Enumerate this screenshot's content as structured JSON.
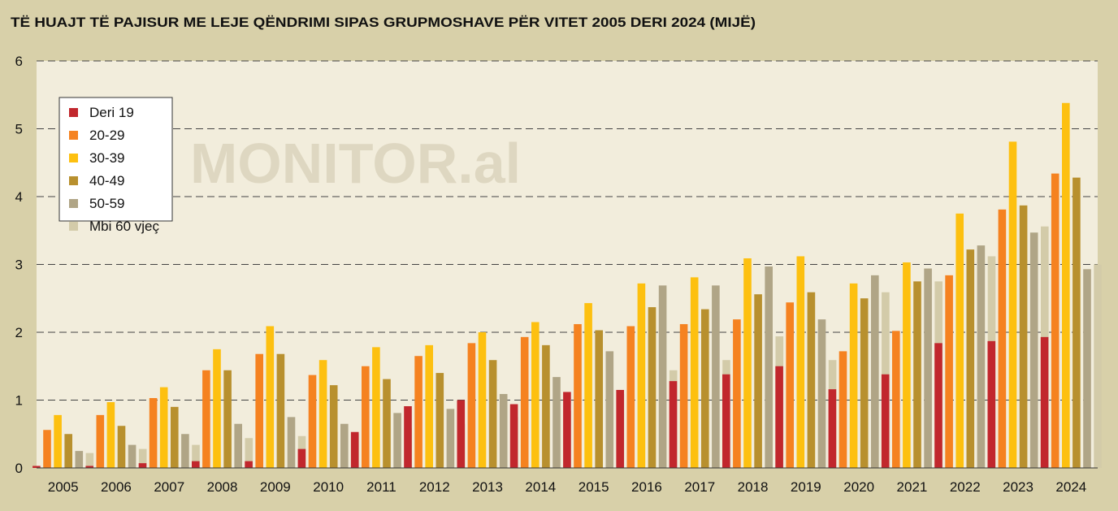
{
  "chart_data": {
    "type": "bar",
    "title": "TË HUAJT TË PAJISUR ME LEJE QËNDRIMI SIPAS GRUPMOSHAVE PËR VITET 2005 DERI 2024 (MIJË)",
    "watermark": "MONITOR.al",
    "xlabel": "",
    "ylabel": "",
    "ylim": [
      0,
      6
    ],
    "yticks": [
      "0",
      "1",
      "2",
      "3",
      "4",
      "5",
      "6"
    ],
    "grid": true,
    "legend_position": "top-left",
    "categories": [
      "2005",
      "2006",
      "2007",
      "2008",
      "2009",
      "2010",
      "2011",
      "2012",
      "2013",
      "2014",
      "2015",
      "2016",
      "2017",
      "2018",
      "2019",
      "2020",
      "2021",
      "2022",
      "2023",
      "2024"
    ],
    "series": [
      {
        "name": "Deri 19",
        "color": "#c1272d",
        "values": [
          0.03,
          0.03,
          0.07,
          0.1,
          0.1,
          0.28,
          0.53,
          0.91,
          1.0,
          0.94,
          1.12,
          1.15,
          1.28,
          1.38,
          1.5,
          1.16,
          1.38,
          1.84,
          1.87,
          1.93
        ]
      },
      {
        "name": "20-29",
        "color": "#f58220",
        "values": [
          0.56,
          0.78,
          1.03,
          1.44,
          1.68,
          1.37,
          1.5,
          1.65,
          1.84,
          1.93,
          2.12,
          2.09,
          2.12,
          2.19,
          2.44,
          1.72,
          2.02,
          2.84,
          3.81,
          4.34
        ]
      },
      {
        "name": "30-39",
        "color": "#fdc010",
        "values": [
          0.78,
          0.97,
          1.19,
          1.75,
          2.09,
          1.59,
          1.78,
          1.81,
          2.0,
          2.15,
          2.43,
          2.72,
          2.81,
          3.09,
          3.12,
          2.72,
          3.03,
          3.75,
          4.81,
          5.38
        ]
      },
      {
        "name": "40-49",
        "color": "#b8902e",
        "values": [
          0.5,
          0.62,
          0.9,
          1.44,
          1.68,
          1.22,
          1.31,
          1.4,
          1.59,
          1.81,
          2.03,
          2.37,
          2.34,
          2.56,
          2.59,
          2.5,
          2.75,
          3.22,
          3.87,
          4.28
        ]
      },
      {
        "name": "50-59",
        "color": "#b0a586",
        "values": [
          0.25,
          0.34,
          0.5,
          0.65,
          0.75,
          0.65,
          0.81,
          0.87,
          1.09,
          1.34,
          1.72,
          2.69,
          2.69,
          2.97,
          2.19,
          2.84,
          2.94,
          3.28,
          3.47,
          2.93
        ]
      },
      {
        "name": "Mbi 60 vjeç",
        "color": "#d3cba9",
        "values": [
          0.22,
          0.28,
          0.34,
          0.44,
          0.47,
          0.5,
          0.59,
          0.65,
          0.75,
          0.84,
          1.09,
          1.44,
          1.59,
          1.94,
          1.59,
          2.59,
          2.75,
          3.12,
          3.56,
          3.0
        ]
      }
    ]
  }
}
